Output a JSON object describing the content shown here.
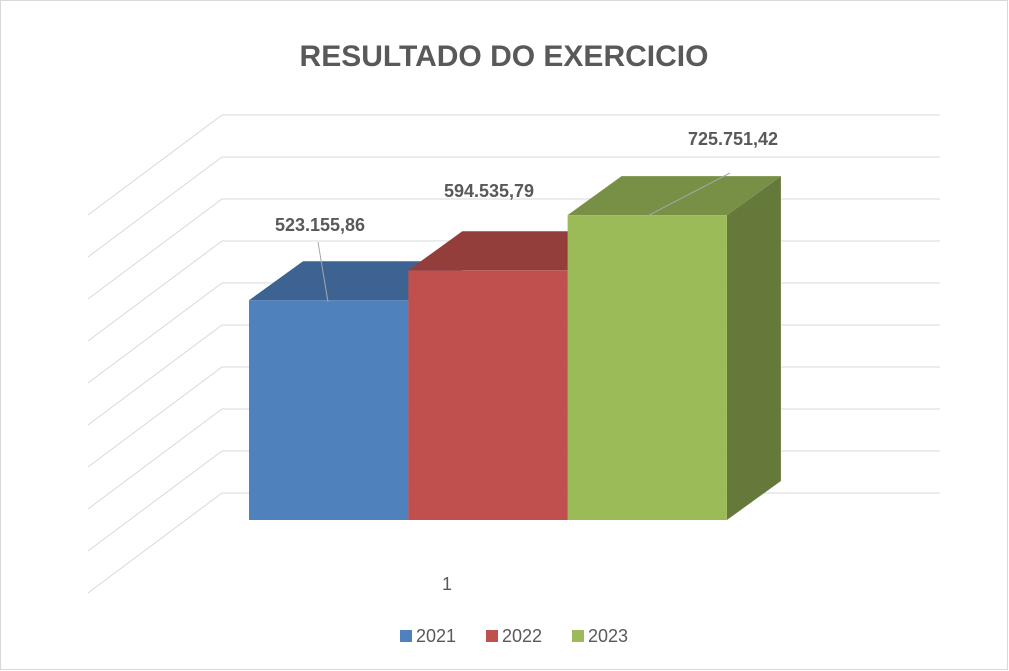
{
  "chart_data": {
    "type": "bar3d",
    "title": "RESULTADO DO EXERCICIO",
    "categories": [
      "1"
    ],
    "series": [
      {
        "name": "2021",
        "color": "#4f81bd",
        "values": [
          523155.86
        ],
        "value_labels": [
          "523.155,86"
        ]
      },
      {
        "name": "2022",
        "color": "#c0504d",
        "values": [
          594535.79
        ],
        "value_labels": [
          "594.535,79"
        ]
      },
      {
        "name": "2023",
        "color": "#9bbb59",
        "values": [
          725751.42
        ],
        "value_labels": [
          "725.751,42"
        ]
      }
    ],
    "ylim": [
      0,
      900000
    ],
    "yticks": [
      0,
      100000,
      200000,
      300000,
      400000,
      500000,
      600000,
      700000,
      800000,
      900000
    ],
    "grid": true,
    "legend": "bottom"
  }
}
